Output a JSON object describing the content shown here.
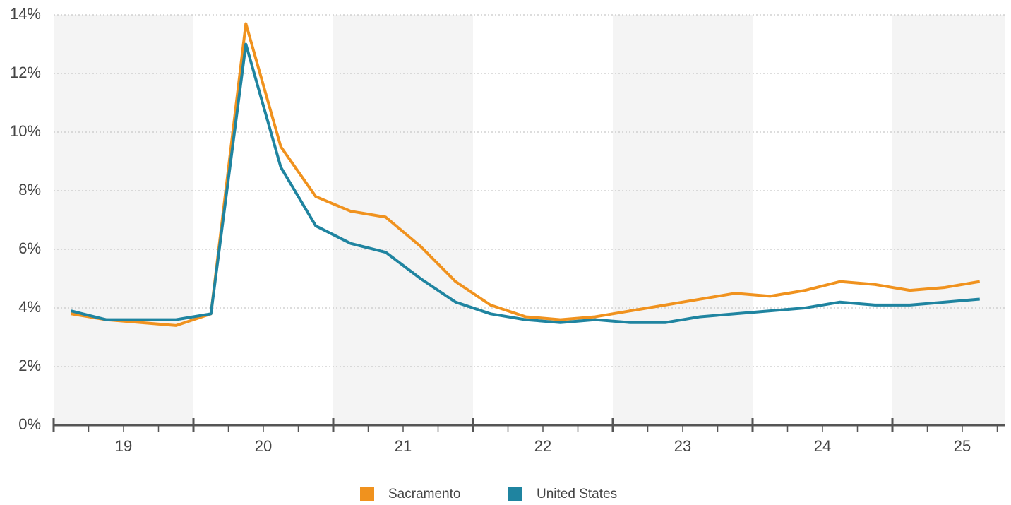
{
  "chart_data": {
    "type": "line",
    "xticks": [
      "19",
      "20",
      "21",
      "22",
      "23",
      "24",
      "25"
    ],
    "points_per_tick": 4,
    "series": [
      {
        "name": "Sacramento",
        "color": "#f0921e",
        "values": [
          3.8,
          3.6,
          3.5,
          3.4,
          3.8,
          13.7,
          9.5,
          7.8,
          7.3,
          7.1,
          6.1,
          4.9,
          4.1,
          3.7,
          3.6,
          3.7,
          3.9,
          4.1,
          4.3,
          4.5,
          4.4,
          4.6,
          4.9,
          4.8,
          4.6,
          4.7,
          4.9
        ]
      },
      {
        "name": "United States",
        "color": "#1f84a0",
        "values": [
          3.9,
          3.6,
          3.6,
          3.6,
          3.8,
          13.0,
          8.8,
          6.8,
          6.2,
          5.9,
          5.0,
          4.2,
          3.8,
          3.6,
          3.5,
          3.6,
          3.5,
          3.5,
          3.7,
          3.8,
          3.9,
          4.0,
          4.2,
          4.1,
          4.1,
          4.2,
          4.3
        ]
      }
    ],
    "ylim": [
      0,
      14
    ],
    "yticks": [
      {
        "value": 0,
        "label": "0%"
      },
      {
        "value": 2,
        "label": "2%"
      },
      {
        "value": 4,
        "label": "4%"
      },
      {
        "value": 6,
        "label": "6%"
      },
      {
        "value": 8,
        "label": "8%"
      },
      {
        "value": 10,
        "label": "10%"
      },
      {
        "value": 12,
        "label": "12%"
      },
      {
        "value": 14,
        "label": "14%"
      }
    ],
    "grid": true,
    "legend": "bottom"
  }
}
